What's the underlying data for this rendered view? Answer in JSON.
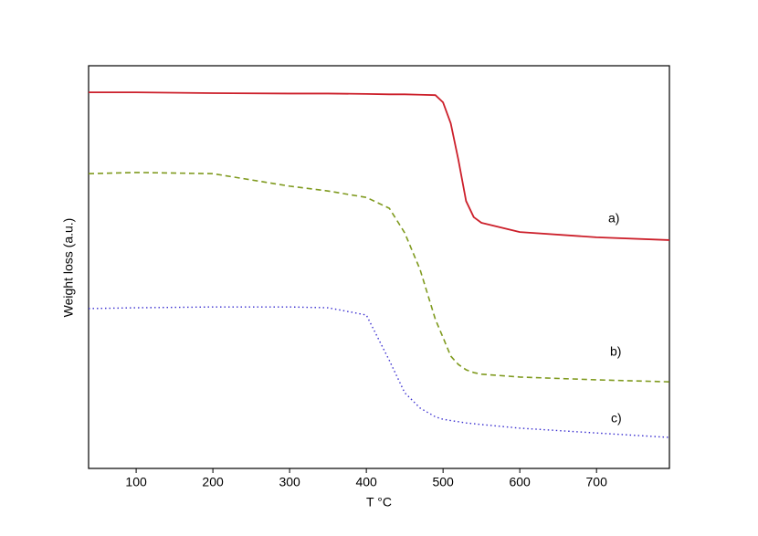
{
  "chart_data": {
    "type": "line",
    "x_label": "T °C",
    "y_label": "Weight loss (a.u.)",
    "x": [
      38,
      100,
      200,
      300,
      350,
      400,
      430,
      450,
      470,
      490,
      500,
      510,
      520,
      530,
      540,
      550,
      600,
      700,
      795
    ],
    "series": [
      {
        "name": "a)",
        "color": "#cc1f2a",
        "dash": "solid",
        "values": [
          93.4,
          93.4,
          93.2,
          93.1,
          93.1,
          93.0,
          92.9,
          92.9,
          92.8,
          92.7,
          90.9,
          85.7,
          76.6,
          66.4,
          62.4,
          61.0,
          58.7,
          57.4,
          56.7
        ]
      },
      {
        "name": "b)",
        "color": "#7f9a1e",
        "dash": "dashed",
        "values": [
          73.2,
          73.5,
          73.2,
          70.1,
          68.9,
          67.3,
          64.6,
          58.5,
          49.4,
          37.0,
          32.5,
          27.9,
          25.8,
          24.5,
          23.8,
          23.4,
          22.7,
          22.0,
          21.5
        ]
      },
      {
        "name": "c)",
        "color": "#3a2fd0",
        "dash": "dotted",
        "values": [
          39.7,
          39.9,
          40.1,
          40.1,
          39.9,
          38.1,
          26.8,
          18.8,
          15.0,
          12.8,
          12.2,
          11.9,
          11.6,
          11.3,
          11.1,
          10.9,
          10.0,
          8.8,
          7.7
        ]
      }
    ],
    "xlim": [
      38,
      795
    ],
    "xticks": [
      100,
      200,
      300,
      400,
      500,
      600,
      700
    ],
    "ylim": [
      0,
      100
    ]
  }
}
